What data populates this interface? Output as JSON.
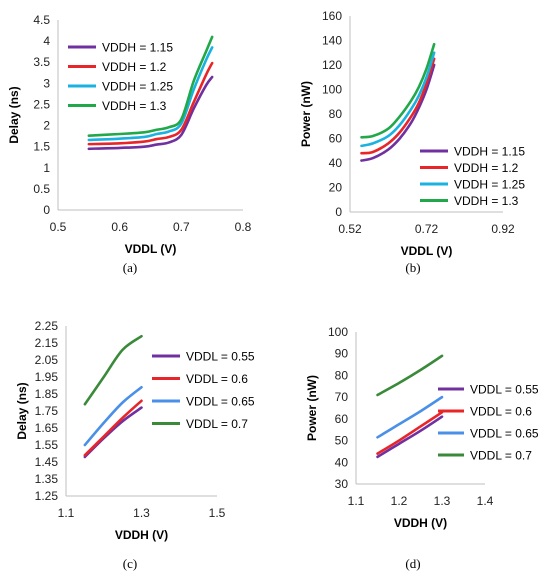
{
  "chart_data": [
    {
      "panel": "a",
      "caption": "(a)",
      "type": "line",
      "xlabel": "VDDL (V)",
      "ylabel": "Delay (ns)",
      "xlim": [
        0.5,
        0.8
      ],
      "ylim": [
        0,
        4.5
      ],
      "x_ticks": [
        "0.5",
        "0.6",
        "0.7",
        "0.8"
      ],
      "y_ticks": [
        "0",
        "0.5",
        "1",
        "1.5",
        "2",
        "2.5",
        "3",
        "3.5",
        "4",
        "4.5"
      ],
      "legend_position": "top-left",
      "x": [
        0.55,
        0.6,
        0.64,
        0.66,
        0.68,
        0.7,
        0.72,
        0.74,
        0.75
      ],
      "series": [
        {
          "name": "VDDH = 1.15",
          "color": "#7030a0",
          "values": [
            1.45,
            1.47,
            1.5,
            1.55,
            1.6,
            1.78,
            2.4,
            2.95,
            3.15
          ]
        },
        {
          "name": "VDDH = 1.2",
          "color": "#e8262a",
          "values": [
            1.56,
            1.58,
            1.62,
            1.68,
            1.73,
            1.9,
            2.55,
            3.2,
            3.48
          ]
        },
        {
          "name": "VDDH = 1.25",
          "color": "#1ab2e0",
          "values": [
            1.66,
            1.69,
            1.73,
            1.8,
            1.86,
            2.05,
            2.85,
            3.55,
            3.85
          ]
        },
        {
          "name": "VDDH = 1.3",
          "color": "#21a84a",
          "values": [
            1.76,
            1.8,
            1.84,
            1.9,
            1.96,
            2.15,
            3.05,
            3.75,
            4.1
          ]
        }
      ]
    },
    {
      "panel": "b",
      "caption": "(b)",
      "type": "line",
      "xlabel": "VDDL (V)",
      "ylabel": "Power (nW)",
      "xlim": [
        0.52,
        0.92
      ],
      "ylim": [
        0,
        160
      ],
      "x_ticks": [
        "0.52",
        "0.72",
        "0.92"
      ],
      "y_ticks": [
        "0",
        "20",
        "40",
        "60",
        "80",
        "100",
        "120",
        "140",
        "160"
      ],
      "legend_position": "bottom-right",
      "x": [
        0.55,
        0.58,
        0.62,
        0.65,
        0.68,
        0.7,
        0.72,
        0.74
      ],
      "series": [
        {
          "name": "VDDH = 1.15",
          "color": "#7030a0",
          "values": [
            42,
            44,
            51,
            60,
            73,
            85,
            100,
            120
          ]
        },
        {
          "name": "VDDH = 1.2",
          "color": "#e8262a",
          "values": [
            48,
            49,
            56,
            65,
            78,
            89,
            105,
            125
          ]
        },
        {
          "name": "VDDH = 1.25",
          "color": "#1ab2e0",
          "values": [
            54,
            56,
            62,
            71,
            84,
            95,
            110,
            130
          ]
        },
        {
          "name": "VDDH = 1.3",
          "color": "#21a84a",
          "values": [
            61,
            62,
            68,
            78,
            91,
            102,
            117,
            137
          ]
        }
      ]
    },
    {
      "panel": "c",
      "caption": "(c)",
      "type": "line",
      "xlabel": "VDDH (V)",
      "ylabel": "Delay (ns)",
      "xlim": [
        1.1,
        1.5
      ],
      "ylim": [
        1.25,
        2.25
      ],
      "x_ticks": [
        "1.1",
        "1.3",
        "1.5"
      ],
      "y_ticks": [
        "1.25",
        "1.35",
        "1.45",
        "1.55",
        "1.65",
        "1.75",
        "1.85",
        "1.95",
        "2.05",
        "2.15",
        "2.25"
      ],
      "legend_position": "right",
      "x": [
        1.15,
        1.2,
        1.25,
        1.3
      ],
      "series": [
        {
          "name": "VDDL = 0.55",
          "color": "#7030a0",
          "values": [
            1.48,
            1.59,
            1.69,
            1.77
          ]
        },
        {
          "name": "VDDL = 0.6",
          "color": "#e8262a",
          "values": [
            1.49,
            1.6,
            1.71,
            1.81
          ]
        },
        {
          "name": "VDDL = 0.65",
          "color": "#4a8fe8",
          "values": [
            1.55,
            1.68,
            1.8,
            1.89
          ]
        },
        {
          "name": "VDDL = 0.7",
          "color": "#3a8a3a",
          "values": [
            1.79,
            1.95,
            2.11,
            2.19
          ]
        }
      ]
    },
    {
      "panel": "d",
      "caption": "(d)",
      "type": "line",
      "xlabel": "VDDH (V)",
      "ylabel": "Power (nW)",
      "xlim": [
        1.1,
        1.4
      ],
      "ylim": [
        30,
        100
      ],
      "x_ticks": [
        "1.1",
        "1.2",
        "1.3",
        "1.4"
      ],
      "y_ticks": [
        "30",
        "40",
        "50",
        "60",
        "70",
        "80",
        "90",
        "100"
      ],
      "legend_position": "right",
      "x": [
        1.15,
        1.2,
        1.25,
        1.3
      ],
      "series": [
        {
          "name": "VDDL = 0.55",
          "color": "#7030a0",
          "values": [
            42.5,
            48.5,
            54.5,
            61
          ]
        },
        {
          "name": "VDDL = 0.6",
          "color": "#e8262a",
          "values": [
            44,
            50,
            56.5,
            63
          ]
        },
        {
          "name": "VDDL = 0.65",
          "color": "#4a8fe8",
          "values": [
            51.5,
            57.5,
            63.5,
            70
          ]
        },
        {
          "name": "VDDL = 0.7",
          "color": "#3a8a3a",
          "values": [
            71,
            76.5,
            82.5,
            89
          ]
        }
      ]
    }
  ]
}
